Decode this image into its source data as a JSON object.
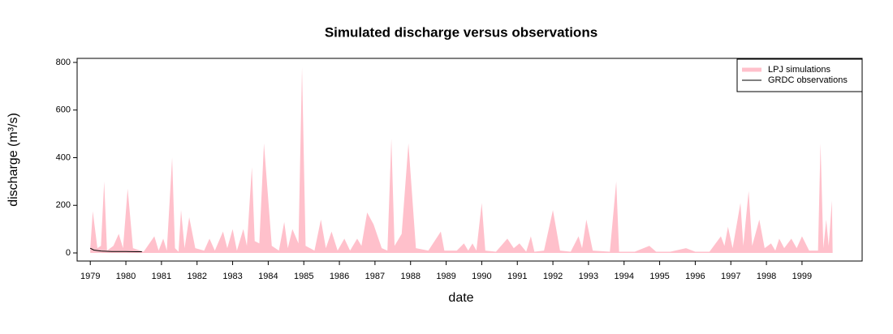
{
  "chart_data": {
    "type": "area",
    "title": "Simulated discharge versus observations",
    "xlabel": "date",
    "ylabel": "discharge (m³/s)",
    "xlim": [
      1978.63,
      2000.69
    ],
    "xticks": [
      1979,
      1980,
      1981,
      1982,
      1983,
      1984,
      1985,
      1986,
      1987,
      1988,
      1989,
      1990,
      1991,
      1992,
      1993,
      1994,
      1995,
      1996,
      1997,
      1998,
      1999
    ],
    "ylim": [
      -34,
      817
    ],
    "yticks": [
      0,
      200,
      400,
      600,
      800
    ],
    "legend": "top-right",
    "series": [
      {
        "name": "LPJ simulations",
        "color": "#ffc0cb",
        "style": "area",
        "x": [
          1979.0,
          1979.07,
          1979.2,
          1979.3,
          1979.39,
          1979.47,
          1979.65,
          1979.8,
          1979.92,
          1980.05,
          1980.2,
          1980.5,
          1980.8,
          1980.92,
          1981.05,
          1981.15,
          1981.3,
          1981.38,
          1981.48,
          1981.55,
          1981.65,
          1981.78,
          1981.95,
          1982.2,
          1982.35,
          1982.5,
          1982.73,
          1982.85,
          1983.0,
          1983.12,
          1983.3,
          1983.4,
          1983.54,
          1983.62,
          1983.75,
          1983.88,
          1984.1,
          1984.3,
          1984.45,
          1984.55,
          1984.68,
          1984.85,
          1984.95,
          1985.05,
          1985.3,
          1985.48,
          1985.62,
          1985.78,
          1985.95,
          1986.14,
          1986.3,
          1986.5,
          1986.62,
          1986.78,
          1986.96,
          1987.19,
          1987.35,
          1987.46,
          1987.55,
          1987.75,
          1987.94,
          1988.15,
          1988.5,
          1988.85,
          1988.95,
          1989.3,
          1989.5,
          1989.62,
          1989.74,
          1989.85,
          1990.0,
          1990.1,
          1990.4,
          1990.72,
          1990.9,
          1991.06,
          1991.25,
          1991.38,
          1991.48,
          1991.75,
          1992.0,
          1992.2,
          1992.5,
          1992.72,
          1992.82,
          1992.94,
          1993.12,
          1993.6,
          1993.78,
          1993.86,
          1994.3,
          1994.71,
          1994.9,
          1995.3,
          1995.74,
          1996.0,
          1996.4,
          1996.72,
          1996.82,
          1996.92,
          1997.05,
          1997.27,
          1997.35,
          1997.5,
          1997.6,
          1997.8,
          1997.95,
          1998.13,
          1998.25,
          1998.36,
          1998.5,
          1998.7,
          1998.85,
          1999.0,
          1999.2,
          1999.45,
          1999.52,
          1999.6,
          1999.68,
          1999.75,
          1999.84,
          1999.86
        ],
        "values": [
          20,
          175,
          20,
          30,
          300,
          10,
          30,
          80,
          20,
          270,
          20,
          5,
          70,
          10,
          60,
          10,
          400,
          20,
          5,
          180,
          20,
          150,
          20,
          10,
          60,
          10,
          90,
          20,
          100,
          10,
          100,
          30,
          360,
          50,
          40,
          460,
          30,
          10,
          130,
          20,
          100,
          40,
          780,
          30,
          10,
          140,
          20,
          90,
          10,
          60,
          10,
          60,
          30,
          170,
          120,
          20,
          10,
          480,
          30,
          80,
          460,
          20,
          10,
          90,
          10,
          10,
          40,
          10,
          40,
          10,
          210,
          10,
          5,
          60,
          20,
          40,
          5,
          70,
          5,
          10,
          180,
          10,
          5,
          70,
          20,
          140,
          10,
          5,
          300,
          5,
          5,
          30,
          5,
          5,
          20,
          5,
          5,
          70,
          30,
          110,
          20,
          210,
          30,
          260,
          30,
          140,
          20,
          40,
          10,
          60,
          20,
          60,
          20,
          70,
          10,
          10,
          460,
          20,
          140,
          30,
          220,
          10
        ]
      },
      {
        "name": "GRDC observations",
        "color": "#000000",
        "style": "line",
        "x": [
          1979.0,
          1979.1,
          1979.3,
          1979.6,
          1980.0,
          1980.3,
          1980.45
        ],
        "values": [
          20,
          12,
          8,
          6,
          6,
          5,
          5
        ]
      }
    ]
  }
}
